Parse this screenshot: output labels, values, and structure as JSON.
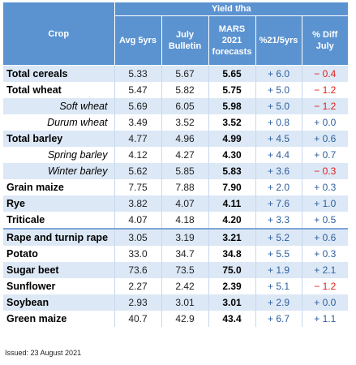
{
  "header": {
    "crop": "Crop",
    "group": "Yield t/ha",
    "avg5": "Avg 5yrs",
    "july": "July Bulletin",
    "mars": "MARS 2021 forecasts",
    "pct": "%21/5yrs",
    "diff": "% Diff July"
  },
  "rows": [
    {
      "crop": "Total cereals",
      "sub": false,
      "avg5": "5.33",
      "july": "5.67",
      "mars": "5.65",
      "pct": "+ 6.0",
      "pct_sign": "pos",
      "diff": "− 0.4",
      "diff_sign": "neg",
      "sep": false
    },
    {
      "crop": "Total wheat",
      "sub": false,
      "avg5": "5.47",
      "july": "5.82",
      "mars": "5.75",
      "pct": "+ 5.0",
      "pct_sign": "pos",
      "diff": "− 1.2",
      "diff_sign": "neg",
      "sep": false
    },
    {
      "crop": "Soft wheat",
      "sub": true,
      "avg5": "5.69",
      "july": "6.05",
      "mars": "5.98",
      "pct": "+ 5.0",
      "pct_sign": "pos",
      "diff": "− 1.2",
      "diff_sign": "neg",
      "sep": false
    },
    {
      "crop": "Durum wheat",
      "sub": true,
      "avg5": "3.49",
      "july": "3.52",
      "mars": "3.52",
      "pct": "+ 0.8",
      "pct_sign": "pos",
      "diff": "+ 0.0",
      "diff_sign": "pos",
      "sep": false
    },
    {
      "crop": "Total barley",
      "sub": false,
      "avg5": "4.77",
      "july": "4.96",
      "mars": "4.99",
      "pct": "+ 4.5",
      "pct_sign": "pos",
      "diff": "+ 0.6",
      "diff_sign": "pos",
      "sep": false
    },
    {
      "crop": "Spring barley",
      "sub": true,
      "avg5": "4.12",
      "july": "4.27",
      "mars": "4.30",
      "pct": "+ 4.4",
      "pct_sign": "pos",
      "diff": "+ 0.7",
      "diff_sign": "pos",
      "sep": false
    },
    {
      "crop": "Winter barley",
      "sub": true,
      "avg5": "5.62",
      "july": "5.85",
      "mars": "5.83",
      "pct": "+ 3.6",
      "pct_sign": "pos",
      "diff": "− 0.3",
      "diff_sign": "neg",
      "sep": false
    },
    {
      "crop": "Grain maize",
      "sub": false,
      "avg5": "7.75",
      "july": "7.88",
      "mars": "7.90",
      "pct": "+ 2.0",
      "pct_sign": "pos",
      "diff": "+ 0.3",
      "diff_sign": "pos",
      "sep": false
    },
    {
      "crop": "Rye",
      "sub": false,
      "avg5": "3.82",
      "july": "4.07",
      "mars": "4.11",
      "pct": "+ 7.6",
      "pct_sign": "pos",
      "diff": "+ 1.0",
      "diff_sign": "pos",
      "sep": false
    },
    {
      "crop": "Triticale",
      "sub": false,
      "avg5": "4.07",
      "july": "4.18",
      "mars": "4.20",
      "pct": "+ 3.3",
      "pct_sign": "pos",
      "diff": "+ 0.5",
      "diff_sign": "pos",
      "sep": false
    },
    {
      "crop": "Rape and turnip rape",
      "sub": false,
      "avg5": "3.05",
      "july": "3.19",
      "mars": "3.21",
      "pct": "+ 5.2",
      "pct_sign": "pos",
      "diff": "+ 0.6",
      "diff_sign": "pos",
      "sep": true
    },
    {
      "crop": "Potato",
      "sub": false,
      "avg5": "33.0",
      "july": "34.7",
      "mars": "34.8",
      "pct": "+ 5.5",
      "pct_sign": "pos",
      "diff": "+ 0.3",
      "diff_sign": "pos",
      "sep": false
    },
    {
      "crop": "Sugar beet",
      "sub": false,
      "avg5": "73.6",
      "july": "73.5",
      "mars": "75.0",
      "pct": "+ 1.9",
      "pct_sign": "pos",
      "diff": "+ 2.1",
      "diff_sign": "pos",
      "sep": false
    },
    {
      "crop": "Sunflower",
      "sub": false,
      "avg5": "2.27",
      "july": "2.42",
      "mars": "2.39",
      "pct": "+ 5.1",
      "pct_sign": "pos",
      "diff": "− 1.2",
      "diff_sign": "neg",
      "sep": false
    },
    {
      "crop": "Soybean",
      "sub": false,
      "avg5": "2.93",
      "july": "3.01",
      "mars": "3.01",
      "pct": "+ 2.9",
      "pct_sign": "pos",
      "diff": "+ 0.0",
      "diff_sign": "pos",
      "sep": false
    },
    {
      "crop": "Green maize",
      "sub": false,
      "avg5": "40.7",
      "july": "42.9",
      "mars": "43.4",
      "pct": "+ 6.7",
      "pct_sign": "pos",
      "diff": "+ 1.1",
      "diff_sign": "pos",
      "sep": false
    }
  ],
  "footer": {
    "issued": "Issued: 23 August 2021"
  },
  "colors": {
    "header_bg": "#5b93d1",
    "stripe": "#dce8f6",
    "positive": "#2e5f9e",
    "negative": "#e0211a"
  }
}
